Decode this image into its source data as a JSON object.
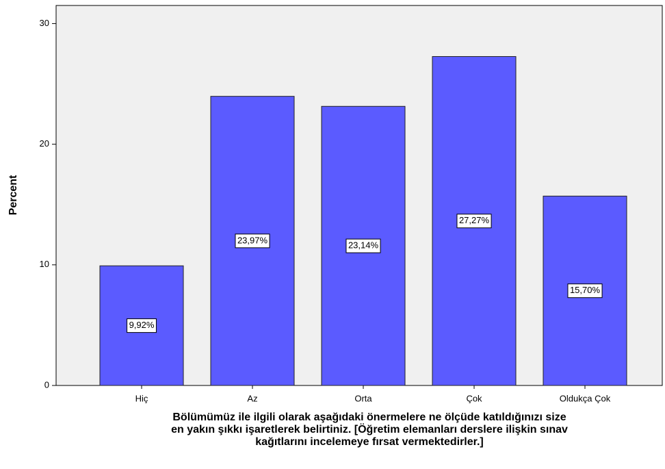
{
  "chart_data": {
    "type": "bar",
    "ylabel": "Percent",
    "xlabel_lines": [
      "Bölümümüz ile ilgili olarak aşağıdaki önermelere ne ölçüde katıldığınızı size",
      "en yakın şıkkı işaretlerek belirtiniz. [Öğretim elemanları derslere ilişkin sınav",
      "kağıtlarını incelemeye fırsat vermektedirler.]"
    ],
    "categories": [
      "Hiç",
      "Az",
      "Orta",
      "Çok",
      "Oldukça Çok"
    ],
    "values": [
      9.92,
      23.97,
      23.14,
      27.27,
      15.7
    ],
    "value_labels": [
      "9,92%",
      "23,97%",
      "23,14%",
      "27,27%",
      "15,70%"
    ],
    "color": "#5b5bff",
    "ylim": [
      0,
      31.5
    ],
    "yticks": [
      0,
      10,
      20,
      30
    ]
  }
}
